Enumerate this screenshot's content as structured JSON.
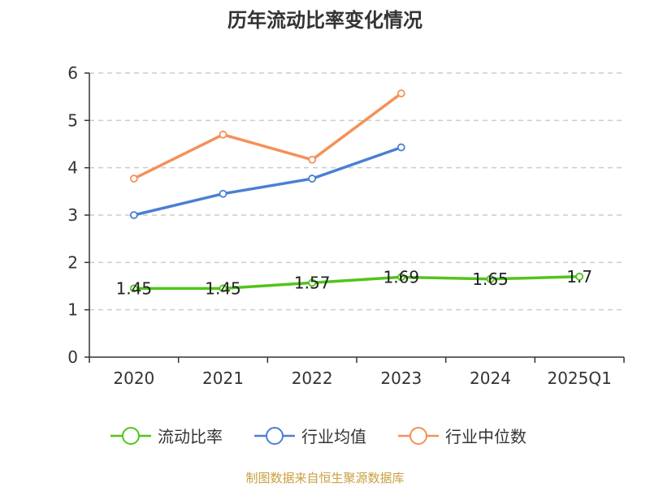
{
  "chart_data": {
    "type": "line",
    "title": "历年流动比率变化情况",
    "categories": [
      "2020",
      "2021",
      "2022",
      "2023",
      "2024",
      "2025Q1"
    ],
    "ylim": [
      0,
      6
    ],
    "yticks": [
      "0",
      "1",
      "2",
      "3",
      "4",
      "5",
      "6"
    ],
    "grid": true,
    "legend_position": "bottom",
    "series": [
      {
        "name": "流动比率",
        "color": "#52c41a",
        "values": [
          1.45,
          1.45,
          1.57,
          1.69,
          1.65,
          1.7
        ],
        "labels": [
          "1.45",
          "1.45",
          "1.57",
          "1.69",
          "1.65",
          "1.7"
        ]
      },
      {
        "name": "行业均值",
        "color": "#4a7fd4",
        "values": [
          3.0,
          3.45,
          3.77,
          4.43,
          null,
          null
        ]
      },
      {
        "name": "行业中位数",
        "color": "#f5905a",
        "values": [
          3.77,
          4.7,
          4.17,
          5.57,
          null,
          null
        ]
      }
    ]
  },
  "source": "制图数据来自恒生聚源数据库"
}
